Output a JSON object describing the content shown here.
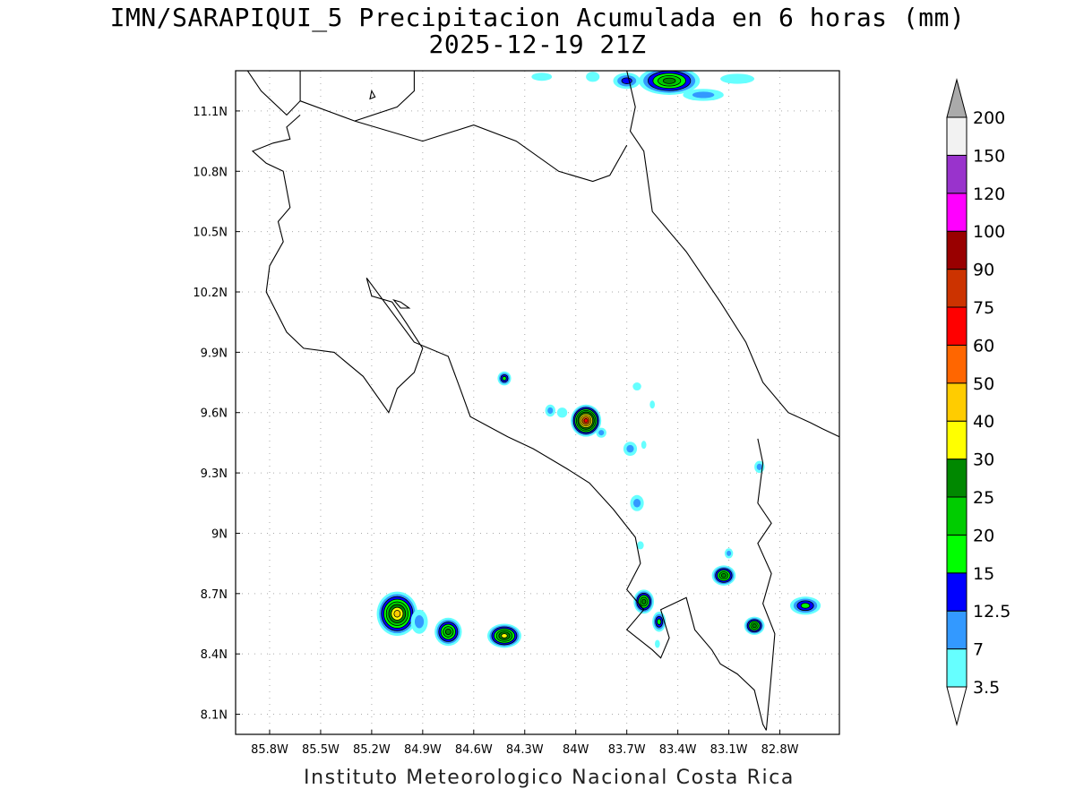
{
  "title": "IMN/SARAPIQUI_5 Precipitacion Acumulada en 6 horas (mm)",
  "subtitle": "2025-12-19 21Z",
  "credit": "Instituto Meteorologico Nacional Costa Rica",
  "map": {
    "lon_range": [
      -86.0,
      -82.45
    ],
    "lat_range": [
      8.0,
      11.3
    ],
    "lon_ticks": [
      {
        "v": -85.8,
        "label": "85.8W"
      },
      {
        "v": -85.5,
        "label": "85.5W"
      },
      {
        "v": -85.2,
        "label": "85.2W"
      },
      {
        "v": -84.9,
        "label": "84.9W"
      },
      {
        "v": -84.6,
        "label": "84.6W"
      },
      {
        "v": -84.3,
        "label": "84.3W"
      },
      {
        "v": -84.0,
        "label": "84W"
      },
      {
        "v": -83.7,
        "label": "83.7W"
      },
      {
        "v": -83.4,
        "label": "83.4W"
      },
      {
        "v": -83.1,
        "label": "83.1W"
      },
      {
        "v": -82.8,
        "label": "82.8W"
      }
    ],
    "lat_ticks": [
      {
        "v": 11.1,
        "label": "11.1N"
      },
      {
        "v": 10.8,
        "label": "10.8N"
      },
      {
        "v": 10.5,
        "label": "10.5N"
      },
      {
        "v": 10.2,
        "label": "10.2N"
      },
      {
        "v": 9.9,
        "label": "9.9N"
      },
      {
        "v": 9.6,
        "label": "9.6N"
      },
      {
        "v": 9.3,
        "label": "9.3N"
      },
      {
        "v": 9.0,
        "label": "9N"
      },
      {
        "v": 8.7,
        "label": "8.7N"
      },
      {
        "v": 8.4,
        "label": "8.4N"
      },
      {
        "v": 8.1,
        "label": "8.1N"
      }
    ],
    "grid": true,
    "coastlines": {
      "main": [
        [
          -85.93,
          11.3
        ],
        [
          -85.85,
          11.2
        ],
        [
          -85.7,
          11.08
        ],
        [
          -85.62,
          11.15
        ],
        [
          -85.62,
          11.3
        ]
      ],
      "pacific": [
        [
          -85.62,
          11.08
        ],
        [
          -85.7,
          11.02
        ],
        [
          -85.68,
          10.96
        ],
        [
          -85.78,
          10.94
        ],
        [
          -85.9,
          10.9
        ],
        [
          -85.82,
          10.84
        ],
        [
          -85.72,
          10.8
        ],
        [
          -85.68,
          10.62
        ],
        [
          -85.75,
          10.55
        ],
        [
          -85.72,
          10.45
        ],
        [
          -85.8,
          10.33
        ],
        [
          -85.82,
          10.2
        ],
        [
          -85.7,
          10.0
        ],
        [
          -85.6,
          9.92
        ],
        [
          -85.42,
          9.9
        ],
        [
          -85.25,
          9.78
        ],
        [
          -85.1,
          9.6
        ],
        [
          -85.05,
          9.72
        ],
        [
          -84.95,
          9.8
        ],
        [
          -84.9,
          9.92
        ],
        [
          -85.0,
          10.05
        ],
        [
          -85.08,
          10.15
        ],
        [
          -85.2,
          10.18
        ],
        [
          -85.23,
          10.27
        ],
        [
          -84.95,
          9.95
        ],
        [
          -84.75,
          9.88
        ],
        [
          -84.68,
          9.72
        ],
        [
          -84.62,
          9.58
        ],
        [
          -84.4,
          9.48
        ],
        [
          -84.25,
          9.42
        ],
        [
          -84.05,
          9.32
        ],
        [
          -83.92,
          9.25
        ],
        [
          -83.78,
          9.12
        ],
        [
          -83.65,
          8.98
        ],
        [
          -83.62,
          8.85
        ],
        [
          -83.7,
          8.72
        ],
        [
          -83.6,
          8.62
        ],
        [
          -83.7,
          8.52
        ],
        [
          -83.55,
          8.42
        ],
        [
          -83.5,
          8.38
        ],
        [
          -83.45,
          8.48
        ],
        [
          -83.5,
          8.62
        ],
        [
          -83.35,
          8.68
        ],
        [
          -83.3,
          8.52
        ],
        [
          -83.2,
          8.42
        ],
        [
          -83.15,
          8.35
        ],
        [
          -83.05,
          8.3
        ],
        [
          -82.95,
          8.22
        ],
        [
          -82.9,
          8.05
        ],
        [
          -82.88,
          8.02
        ]
      ],
      "caribbean": [
        [
          -83.7,
          11.3
        ],
        [
          -83.65,
          11.12
        ],
        [
          -83.68,
          11.0
        ],
        [
          -83.6,
          10.9
        ],
        [
          -83.55,
          10.6
        ],
        [
          -83.35,
          10.4
        ],
        [
          -83.15,
          10.15
        ],
        [
          -83.0,
          9.95
        ],
        [
          -82.9,
          9.75
        ],
        [
          -82.75,
          9.6
        ],
        [
          -82.62,
          9.55
        ],
        [
          -82.55,
          9.52
        ],
        [
          -82.45,
          9.48
        ]
      ],
      "panama_border": [
        [
          -82.93,
          9.47
        ],
        [
          -82.9,
          9.35
        ],
        [
          -82.93,
          9.15
        ],
        [
          -82.85,
          9.05
        ],
        [
          -82.93,
          8.95
        ],
        [
          -82.85,
          8.8
        ],
        [
          -82.9,
          8.65
        ],
        [
          -82.83,
          8.5
        ],
        [
          -82.85,
          8.3
        ],
        [
          -82.88,
          8.02
        ]
      ],
      "nicaragua_border": [
        [
          -85.62,
          11.15
        ],
        [
          -85.3,
          11.05
        ],
        [
          -84.9,
          10.95
        ],
        [
          -84.6,
          11.03
        ],
        [
          -84.35,
          10.95
        ],
        [
          -84.1,
          10.8
        ],
        [
          -83.9,
          10.75
        ],
        [
          -83.8,
          10.78
        ],
        [
          -83.7,
          10.93
        ]
      ],
      "lake_nicaragua": [
        [
          -84.95,
          11.3
        ],
        [
          -84.95,
          11.2
        ],
        [
          -85.05,
          11.12
        ],
        [
          -85.3,
          11.05
        ]
      ],
      "island": [
        [
          -85.2,
          11.2
        ],
        [
          -85.18,
          11.17
        ],
        [
          -85.21,
          11.16
        ]
      ],
      "chira": [
        [
          -85.07,
          10.16
        ],
        [
          -85.03,
          10.12
        ],
        [
          -84.98,
          10.12
        ],
        [
          -85.03,
          10.15
        ]
      ]
    },
    "precip_cells": [
      {
        "lon": -85.05,
        "lat": 8.6,
        "rx": 0.12,
        "ry": 0.11,
        "peak": 40
      },
      {
        "lon": -84.92,
        "lat": 8.56,
        "rx": 0.05,
        "ry": 0.06,
        "peak": 7
      },
      {
        "lon": -84.75,
        "lat": 8.51,
        "rx": 0.08,
        "ry": 0.07,
        "peak": 25
      },
      {
        "lon": -84.42,
        "lat": 8.49,
        "rx": 0.1,
        "ry": 0.06,
        "peak": 30
      },
      {
        "lon": -83.94,
        "lat": 9.56,
        "rx": 0.09,
        "ry": 0.08,
        "peak": 60
      },
      {
        "lon": -83.85,
        "lat": 9.5,
        "rx": 0.03,
        "ry": 0.025,
        "peak": 7
      },
      {
        "lon": -84.15,
        "lat": 9.61,
        "rx": 0.03,
        "ry": 0.03,
        "peak": 7
      },
      {
        "lon": -84.08,
        "lat": 9.6,
        "rx": 0.03,
        "ry": 0.025,
        "peak": 3.5
      },
      {
        "lon": -84.42,
        "lat": 9.77,
        "rx": 0.04,
        "ry": 0.035,
        "peak": 15
      },
      {
        "lon": -83.68,
        "lat": 9.42,
        "rx": 0.04,
        "ry": 0.035,
        "peak": 7
      },
      {
        "lon": -83.64,
        "lat": 9.15,
        "rx": 0.04,
        "ry": 0.04,
        "peak": 7
      },
      {
        "lon": -83.6,
        "lat": 8.66,
        "rx": 0.06,
        "ry": 0.06,
        "peak": 25
      },
      {
        "lon": -83.51,
        "lat": 8.56,
        "rx": 0.04,
        "ry": 0.05,
        "peak": 15
      },
      {
        "lon": -83.13,
        "lat": 8.79,
        "rx": 0.07,
        "ry": 0.05,
        "peak": 25
      },
      {
        "lon": -82.95,
        "lat": 8.54,
        "rx": 0.06,
        "ry": 0.045,
        "peak": 25
      },
      {
        "lon": -82.65,
        "lat": 8.64,
        "rx": 0.09,
        "ry": 0.045,
        "peak": 15
      },
      {
        "lon": -82.92,
        "lat": 9.33,
        "rx": 0.03,
        "ry": 0.03,
        "peak": 7
      },
      {
        "lon": -83.1,
        "lat": 8.9,
        "rx": 0.025,
        "ry": 0.025,
        "peak": 7
      },
      {
        "lon": -83.45,
        "lat": 11.25,
        "rx": 0.18,
        "ry": 0.07,
        "peak": 25
      },
      {
        "lon": -83.7,
        "lat": 11.25,
        "rx": 0.08,
        "ry": 0.04,
        "peak": 12.5
      },
      {
        "lon": -83.9,
        "lat": 11.27,
        "rx": 0.04,
        "ry": 0.025,
        "peak": 3.5
      },
      {
        "lon": -84.2,
        "lat": 11.27,
        "rx": 0.06,
        "ry": 0.02,
        "peak": 3.5
      },
      {
        "lon": -83.25,
        "lat": 11.18,
        "rx": 0.12,
        "ry": 0.03,
        "peak": 7
      },
      {
        "lon": -83.05,
        "lat": 11.26,
        "rx": 0.1,
        "ry": 0.025,
        "peak": 3.5
      },
      {
        "lon": -83.64,
        "lat": 9.73,
        "rx": 0.025,
        "ry": 0.02,
        "peak": 3.5
      },
      {
        "lon": -83.55,
        "lat": 9.64,
        "rx": 0.015,
        "ry": 0.02,
        "peak": 3.5
      },
      {
        "lon": -83.6,
        "lat": 9.44,
        "rx": 0.015,
        "ry": 0.02,
        "peak": 3.5
      },
      {
        "lon": -83.62,
        "lat": 8.94,
        "rx": 0.02,
        "ry": 0.02,
        "peak": 3.5
      },
      {
        "lon": -83.52,
        "lat": 8.45,
        "rx": 0.015,
        "ry": 0.02,
        "peak": 3.5
      }
    ]
  },
  "colorbar": {
    "levels": [
      "3.5",
      "7",
      "12.5",
      "15",
      "20",
      "25",
      "30",
      "40",
      "50",
      "60",
      "75",
      "90",
      "100",
      "120",
      "150",
      "200"
    ],
    "level_values": [
      3.5,
      7,
      12.5,
      15,
      20,
      25,
      30,
      40,
      50,
      60,
      75,
      90,
      100,
      120,
      150,
      200
    ],
    "colors": [
      "#ffffff",
      "#66ffff",
      "#3399ff",
      "#0000ff",
      "#00ff00",
      "#00cc00",
      "#008800",
      "#ffff00",
      "#ffcc00",
      "#ff6600",
      "#ff0000",
      "#cc3300",
      "#990000",
      "#ff00ff",
      "#9933cc",
      "#f2f2f2",
      "#aaaaaa"
    ]
  }
}
